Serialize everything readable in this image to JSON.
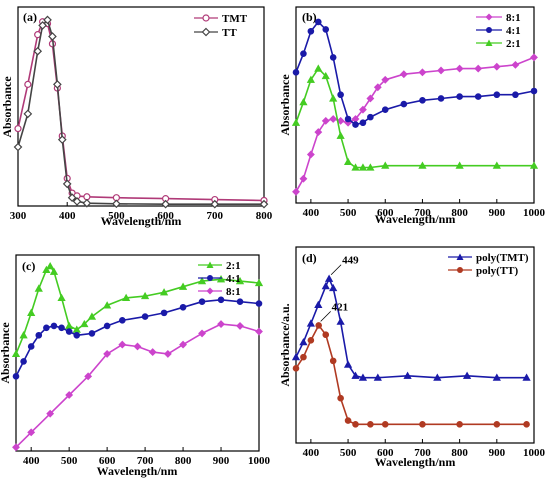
{
  "chart_data": [
    {
      "type": "line",
      "panel_label": "(a)",
      "xlabel": "Wavelength/nm",
      "ylabel": "Absorbance",
      "xlim": [
        300,
        800
      ],
      "ylim": [
        0,
        1.08
      ],
      "xticks": [
        300,
        400,
        500,
        600,
        700,
        800
      ],
      "y_ticks_shown": false,
      "legend_position": "top-right",
      "series": [
        {
          "name": "TMT",
          "color": "#b03a78",
          "marker": "circle-open",
          "x": [
            300,
            320,
            340,
            350,
            360,
            370,
            380,
            390,
            400,
            410,
            420,
            440,
            500,
            600,
            700,
            800
          ],
          "y": [
            0.42,
            0.66,
            0.93,
            1.0,
            0.99,
            0.88,
            0.64,
            0.38,
            0.15,
            0.07,
            0.055,
            0.05,
            0.045,
            0.04,
            0.035,
            0.03
          ]
        },
        {
          "name": "TT",
          "color": "#444444",
          "marker": "diamond-open",
          "x": [
            300,
            320,
            340,
            350,
            360,
            370,
            380,
            390,
            400,
            410,
            420,
            440,
            500,
            600,
            700,
            800
          ],
          "y": [
            0.32,
            0.5,
            0.84,
            0.98,
            1.01,
            0.92,
            0.66,
            0.36,
            0.12,
            0.045,
            0.025,
            0.015,
            0.012,
            0.01,
            0.01,
            0.01
          ]
        }
      ]
    },
    {
      "type": "line",
      "panel_label": "(b)",
      "xlabel": "Wavelength/nm",
      "ylabel": "Absorbance",
      "xlim": [
        360,
        1000
      ],
      "ylim": [
        0,
        1.05
      ],
      "xticks": [
        400,
        500,
        600,
        700,
        800,
        900,
        1000
      ],
      "y_ticks_shown": false,
      "legend_position": "top-right",
      "series": [
        {
          "name": "8:1",
          "color": "#cc44cc",
          "marker": "diamond",
          "x": [
            360,
            380,
            400,
            420,
            440,
            460,
            480,
            500,
            520,
            540,
            560,
            580,
            600,
            650,
            700,
            750,
            800,
            850,
            900,
            950,
            1000
          ],
          "y": [
            0.06,
            0.13,
            0.26,
            0.38,
            0.44,
            0.45,
            0.44,
            0.43,
            0.45,
            0.5,
            0.56,
            0.62,
            0.66,
            0.69,
            0.7,
            0.71,
            0.72,
            0.72,
            0.73,
            0.74,
            0.78
          ]
        },
        {
          "name": "4:1",
          "color": "#1a1aa8",
          "marker": "circle",
          "x": [
            360,
            380,
            400,
            420,
            440,
            460,
            480,
            500,
            520,
            540,
            560,
            600,
            650,
            700,
            750,
            800,
            850,
            900,
            950,
            1000
          ],
          "y": [
            0.7,
            0.8,
            0.92,
            0.97,
            0.93,
            0.78,
            0.58,
            0.45,
            0.42,
            0.43,
            0.46,
            0.5,
            0.53,
            0.55,
            0.56,
            0.57,
            0.57,
            0.58,
            0.58,
            0.6
          ]
        },
        {
          "name": "2:1",
          "color": "#44cc22",
          "marker": "triangle",
          "x": [
            360,
            380,
            400,
            420,
            440,
            460,
            480,
            500,
            520,
            540,
            560,
            600,
            700,
            800,
            900,
            1000
          ],
          "y": [
            0.43,
            0.54,
            0.66,
            0.72,
            0.68,
            0.56,
            0.36,
            0.22,
            0.19,
            0.19,
            0.19,
            0.2,
            0.2,
            0.2,
            0.2,
            0.2
          ]
        }
      ]
    },
    {
      "type": "line",
      "panel_label": "(c)",
      "xlabel": "Wavelength/nm",
      "ylabel": "Absorbance",
      "xlim": [
        360,
        1000
      ],
      "ylim": [
        0,
        1.05
      ],
      "xticks": [
        400,
        500,
        600,
        700,
        800,
        900,
        1000
      ],
      "y_ticks_shown": false,
      "legend_position": "top-right",
      "series": [
        {
          "name": "2:1",
          "color": "#44cc22",
          "marker": "triangle",
          "x": [
            360,
            380,
            400,
            420,
            440,
            450,
            460,
            480,
            500,
            520,
            540,
            560,
            600,
            650,
            700,
            750,
            800,
            850,
            900,
            950,
            1000
          ],
          "y": [
            0.52,
            0.62,
            0.74,
            0.87,
            0.97,
            0.99,
            0.96,
            0.82,
            0.67,
            0.65,
            0.68,
            0.72,
            0.78,
            0.82,
            0.83,
            0.85,
            0.88,
            0.91,
            0.92,
            0.91,
            0.9
          ]
        },
        {
          "name": "4:1",
          "color": "#1a1aa8",
          "marker": "circle",
          "x": [
            360,
            380,
            400,
            420,
            440,
            460,
            480,
            500,
            520,
            560,
            600,
            640,
            700,
            750,
            800,
            850,
            900,
            950,
            1000
          ],
          "y": [
            0.4,
            0.48,
            0.56,
            0.62,
            0.66,
            0.67,
            0.66,
            0.64,
            0.62,
            0.63,
            0.67,
            0.7,
            0.72,
            0.74,
            0.77,
            0.8,
            0.81,
            0.8,
            0.79
          ]
        },
        {
          "name": "8:1",
          "color": "#cc44cc",
          "marker": "diamond",
          "x": [
            360,
            400,
            450,
            500,
            550,
            600,
            640,
            680,
            720,
            760,
            800,
            850,
            900,
            950,
            1000
          ],
          "y": [
            0.02,
            0.1,
            0.2,
            0.3,
            0.4,
            0.52,
            0.57,
            0.56,
            0.53,
            0.52,
            0.57,
            0.63,
            0.68,
            0.67,
            0.64
          ]
        }
      ]
    },
    {
      "type": "line",
      "panel_label": "(d)",
      "xlabel": "Wavelength/nm",
      "ylabel": "Absorbance/a.u.",
      "xlim": [
        360,
        1000
      ],
      "ylim": [
        0,
        1.05
      ],
      "xticks": [
        400,
        500,
        600,
        700,
        800,
        900,
        1000
      ],
      "y_ticks_shown": false,
      "legend_position": "top-right",
      "annotations": [
        {
          "text": "449",
          "x": 449,
          "y": 0.88
        },
        {
          "text": "421",
          "x": 421,
          "y": 0.63
        }
      ],
      "series": [
        {
          "name": "poly(TMT)",
          "color": "#1a1aa8",
          "marker": "triangle",
          "x": [
            360,
            380,
            400,
            420,
            440,
            449,
            460,
            480,
            500,
            520,
            540,
            580,
            660,
            740,
            820,
            900,
            980
          ],
          "y": [
            0.46,
            0.54,
            0.64,
            0.74,
            0.84,
            0.88,
            0.83,
            0.65,
            0.42,
            0.36,
            0.35,
            0.35,
            0.36,
            0.35,
            0.36,
            0.35,
            0.35
          ]
        },
        {
          "name": "poly(TT)",
          "color": "#b03a22",
          "marker": "circle",
          "x": [
            360,
            380,
            400,
            421,
            440,
            460,
            480,
            500,
            520,
            560,
            600,
            700,
            800,
            900,
            980
          ],
          "y": [
            0.4,
            0.46,
            0.55,
            0.63,
            0.58,
            0.44,
            0.24,
            0.12,
            0.1,
            0.1,
            0.1,
            0.1,
            0.1,
            0.1,
            0.1
          ]
        }
      ]
    }
  ]
}
